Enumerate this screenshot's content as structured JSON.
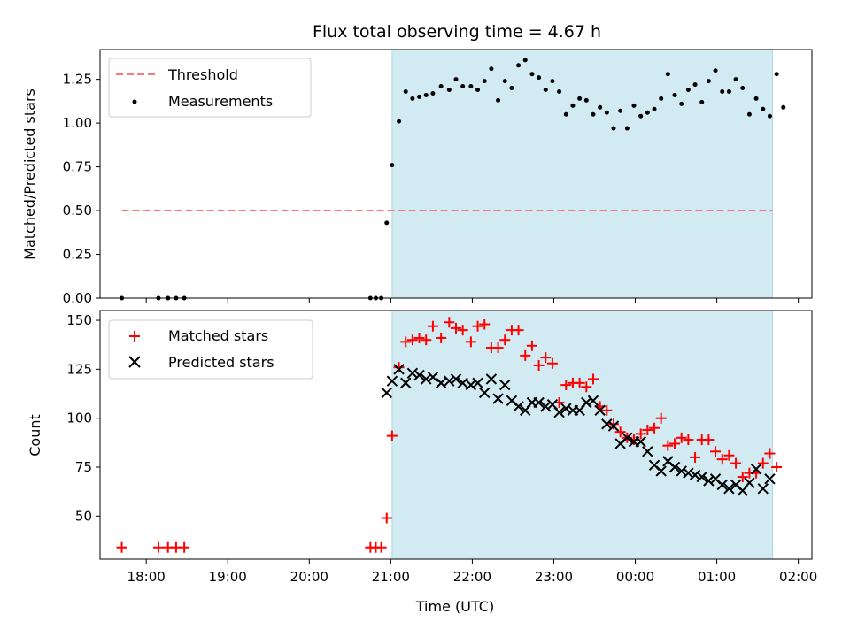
{
  "chart_data": [
    {
      "type": "scatter",
      "title": "Flux total observing time = 4.67 h",
      "xlabel": "",
      "ylabel": "Matched/Predicted stars",
      "xlim": [
        "17:26",
        "02:10"
      ],
      "ylim": [
        0,
        1.42
      ],
      "yticks": [
        0.0,
        0.25,
        0.5,
        0.75,
        1.0,
        1.25
      ],
      "ytick_labels": [
        "0.00",
        "0.25",
        "0.50",
        "0.75",
        "1.00",
        "1.25"
      ],
      "xticks": [
        "18:00",
        "19:00",
        "20:00",
        "21:00",
        "22:00",
        "23:00",
        "00:00",
        "01:00",
        "02:00"
      ],
      "grid": false,
      "legend": "upper-left",
      "shaded_span": [
        "21:01",
        "01:41"
      ],
      "threshold": {
        "name": "Threshold",
        "value": 0.5,
        "x": [
          "17:42",
          "01:41"
        ],
        "color": "#f87a7a"
      },
      "series": [
        {
          "name": "Measurements",
          "color": "#000000",
          "points": [
            [
              "17:42",
              0.0
            ],
            [
              "18:09",
              0.0
            ],
            [
              "18:16",
              0.0
            ],
            [
              "18:22",
              0.0
            ],
            [
              "18:28",
              0.0
            ],
            [
              "20:45",
              0.0
            ],
            [
              "20:49",
              0.0
            ],
            [
              "20:53",
              0.0
            ],
            [
              "20:57",
              0.43
            ],
            [
              "21:01",
              0.76
            ],
            [
              "21:06",
              1.01
            ],
            [
              "21:11",
              1.18
            ],
            [
              "21:16",
              1.14
            ],
            [
              "21:21",
              1.15
            ],
            [
              "21:26",
              1.16
            ],
            [
              "21:31",
              1.17
            ],
            [
              "21:37",
              1.21
            ],
            [
              "21:43",
              1.19
            ],
            [
              "21:48",
              1.25
            ],
            [
              "21:53",
              1.21
            ],
            [
              "21:59",
              1.21
            ],
            [
              "22:04",
              1.19
            ],
            [
              "22:09",
              1.24
            ],
            [
              "22:14",
              1.31
            ],
            [
              "22:19",
              1.13
            ],
            [
              "22:24",
              1.24
            ],
            [
              "22:29",
              1.2
            ],
            [
              "22:34",
              1.33
            ],
            [
              "22:39",
              1.36
            ],
            [
              "22:44",
              1.28
            ],
            [
              "22:49",
              1.26
            ],
            [
              "22:54",
              1.19
            ],
            [
              "22:59",
              1.24
            ],
            [
              "23:04",
              1.18
            ],
            [
              "23:09",
              1.05
            ],
            [
              "23:14",
              1.1
            ],
            [
              "23:19",
              1.14
            ],
            [
              "23:24",
              1.13
            ],
            [
              "23:29",
              1.05
            ],
            [
              "23:34",
              1.09
            ],
            [
              "23:39",
              1.06
            ],
            [
              "23:44",
              0.97
            ],
            [
              "23:49",
              1.07
            ],
            [
              "23:54",
              0.97
            ],
            [
              "23:59",
              1.1
            ],
            [
              "00:04",
              1.04
            ],
            [
              "00:09",
              1.06
            ],
            [
              "00:14",
              1.08
            ],
            [
              "00:19",
              1.14
            ],
            [
              "00:24",
              1.28
            ],
            [
              "00:29",
              1.16
            ],
            [
              "00:34",
              1.11
            ],
            [
              "00:39",
              1.19
            ],
            [
              "00:44",
              1.22
            ],
            [
              "00:49",
              1.12
            ],
            [
              "00:54",
              1.24
            ],
            [
              "00:59",
              1.3
            ],
            [
              "01:04",
              1.18
            ],
            [
              "01:09",
              1.18
            ],
            [
              "01:14",
              1.25
            ],
            [
              "01:19",
              1.2
            ],
            [
              "01:24",
              1.05
            ],
            [
              "01:29",
              1.14
            ],
            [
              "01:34",
              1.08
            ],
            [
              "01:39",
              1.04
            ],
            [
              "01:44",
              1.28
            ],
            [
              "01:49",
              1.09
            ]
          ]
        }
      ]
    },
    {
      "type": "scatter",
      "title": "",
      "xlabel": "Time (UTC)",
      "ylabel": "Count",
      "xlim": [
        "17:26",
        "02:10"
      ],
      "ylim": [
        28,
        155
      ],
      "yticks": [
        50,
        75,
        100,
        125,
        150
      ],
      "ytick_labels": [
        "50",
        "75",
        "100",
        "125",
        "150"
      ],
      "xticks": [
        "18:00",
        "19:00",
        "20:00",
        "21:00",
        "22:00",
        "23:00",
        "00:00",
        "01:00",
        "02:00"
      ],
      "grid": false,
      "legend": "upper-left",
      "shaded_span": [
        "21:01",
        "01:41"
      ],
      "series": [
        {
          "name": "Matched stars",
          "marker": "plus",
          "color": "#ff0000",
          "points": [
            [
              "17:42",
              34
            ],
            [
              "18:09",
              34
            ],
            [
              "18:16",
              34
            ],
            [
              "18:22",
              34
            ],
            [
              "18:28",
              34
            ],
            [
              "20:45",
              34
            ],
            [
              "20:49",
              34
            ],
            [
              "20:53",
              34
            ],
            [
              "20:57",
              49
            ],
            [
              "21:01",
              91
            ],
            [
              "21:06",
              126
            ],
            [
              "21:11",
              139
            ],
            [
              "21:16",
              140
            ],
            [
              "21:21",
              141
            ],
            [
              "21:26",
              140
            ],
            [
              "21:31",
              147
            ],
            [
              "21:37",
              141
            ],
            [
              "21:43",
              149
            ],
            [
              "21:48",
              146
            ],
            [
              "21:53",
              145
            ],
            [
              "21:59",
              139
            ],
            [
              "22:04",
              147
            ],
            [
              "22:09",
              148
            ],
            [
              "22:14",
              136
            ],
            [
              "22:19",
              136
            ],
            [
              "22:24",
              140
            ],
            [
              "22:29",
              145
            ],
            [
              "22:34",
              145
            ],
            [
              "22:39",
              132
            ],
            [
              "22:44",
              137
            ],
            [
              "22:49",
              127
            ],
            [
              "22:54",
              131
            ],
            [
              "22:59",
              128
            ],
            [
              "23:04",
              108
            ],
            [
              "23:09",
              117
            ],
            [
              "23:14",
              118
            ],
            [
              "23:19",
              118
            ],
            [
              "23:24",
              116
            ],
            [
              "23:29",
              120
            ],
            [
              "23:34",
              106
            ],
            [
              "23:39",
              104
            ],
            [
              "23:44",
              97
            ],
            [
              "23:49",
              93
            ],
            [
              "23:54",
              90
            ],
            [
              "23:59",
              89
            ],
            [
              "00:04",
              92
            ],
            [
              "00:09",
              94
            ],
            [
              "00:14",
              95
            ],
            [
              "00:19",
              100
            ],
            [
              "00:24",
              86
            ],
            [
              "00:29",
              87
            ],
            [
              "00:34",
              90
            ],
            [
              "00:39",
              89
            ],
            [
              "00:44",
              80
            ],
            [
              "00:49",
              89
            ],
            [
              "00:54",
              89
            ],
            [
              "00:59",
              83
            ],
            [
              "01:04",
              79
            ],
            [
              "01:09",
              81
            ],
            [
              "01:14",
              77
            ],
            [
              "01:19",
              70
            ],
            [
              "01:24",
              72
            ],
            [
              "01:29",
              72
            ],
            [
              "01:34",
              77
            ],
            [
              "01:39",
              82
            ],
            [
              "01:44",
              75
            ]
          ]
        },
        {
          "name": "Predicted stars",
          "marker": "x",
          "color": "#000000",
          "points": [
            [
              "20:57",
              113
            ],
            [
              "21:01",
              119
            ],
            [
              "21:06",
              125
            ],
            [
              "21:11",
              118
            ],
            [
              "21:16",
              123
            ],
            [
              "21:21",
              122
            ],
            [
              "21:26",
              120
            ],
            [
              "21:31",
              121
            ],
            [
              "21:37",
              118
            ],
            [
              "21:43",
              119
            ],
            [
              "21:48",
              120
            ],
            [
              "21:53",
              118
            ],
            [
              "21:59",
              117
            ],
            [
              "22:04",
              118
            ],
            [
              "22:09",
              113
            ],
            [
              "22:14",
              120
            ],
            [
              "22:19",
              110
            ],
            [
              "22:24",
              117
            ],
            [
              "22:29",
              109
            ],
            [
              "22:34",
              106
            ],
            [
              "22:39",
              104
            ],
            [
              "22:44",
              108
            ],
            [
              "22:49",
              108
            ],
            [
              "22:54",
              106
            ],
            [
              "22:59",
              107
            ],
            [
              "23:04",
              103
            ],
            [
              "23:09",
              105
            ],
            [
              "23:14",
              104
            ],
            [
              "23:19",
              104
            ],
            [
              "23:24",
              108
            ],
            [
              "23:29",
              109
            ],
            [
              "23:34",
              104
            ],
            [
              "23:39",
              97
            ],
            [
              "23:44",
              96
            ],
            [
              "23:49",
              87
            ],
            [
              "23:54",
              90
            ],
            [
              "23:59",
              88
            ],
            [
              "00:04",
              88
            ],
            [
              "00:09",
              83
            ],
            [
              "00:14",
              76
            ],
            [
              "00:19",
              73
            ],
            [
              "00:24",
              78
            ],
            [
              "00:29",
              75
            ],
            [
              "00:34",
              73
            ],
            [
              "00:39",
              72
            ],
            [
              "00:44",
              71
            ],
            [
              "00:49",
              70
            ],
            [
              "00:54",
              68
            ],
            [
              "00:59",
              69
            ],
            [
              "01:04",
              66
            ],
            [
              "01:09",
              64
            ],
            [
              "01:14",
              66
            ],
            [
              "01:19",
              63
            ],
            [
              "01:24",
              67
            ],
            [
              "01:29",
              74
            ],
            [
              "01:34",
              64
            ],
            [
              "01:39",
              69
            ]
          ]
        }
      ]
    }
  ]
}
